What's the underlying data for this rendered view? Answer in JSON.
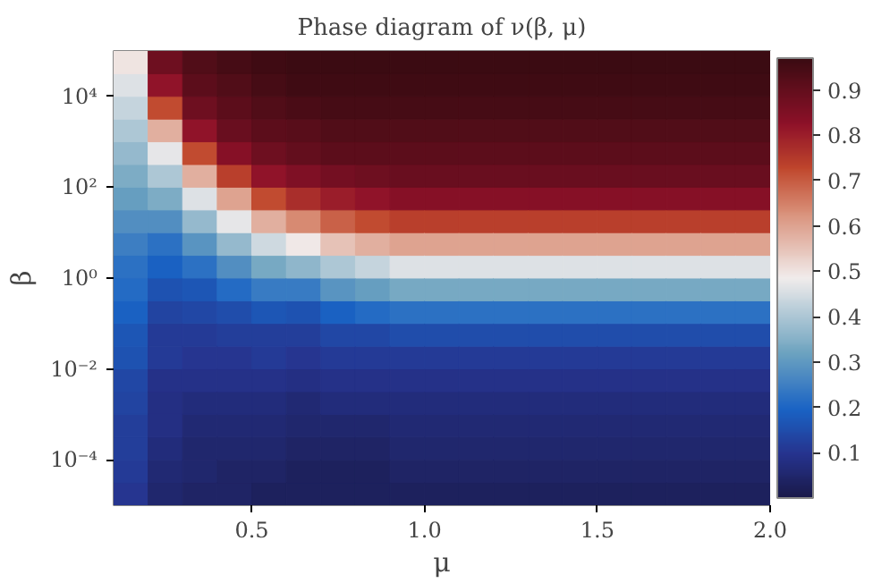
{
  "chart_data": {
    "type": "scatter",
    "title": "Phase diagram of ν(β, μ)",
    "xlabel": "μ",
    "ylabel": "β",
    "marker": "square",
    "log": "y",
    "xlim": [
      0.1,
      2.0
    ],
    "xticks": [
      0.5,
      {
        "value": 1.0,
        "label": "1.0"
      },
      1.5,
      {
        "value": 2.0,
        "label": "2.0"
      }
    ],
    "ylim": [
      1e-05,
      100000
    ],
    "yticks": [
      {
        "value": 0.0001,
        "label": "10⁻⁴"
      },
      {
        "value": 0.01,
        "label": "10⁻²"
      },
      {
        "value": 1,
        "label": "10⁰"
      },
      {
        "value": 100,
        "label": "10²"
      },
      {
        "value": 10000,
        "label": "10⁴"
      }
    ],
    "clim": [
      0.0,
      0.97
    ],
    "cticks": [
      0.1,
      0.2,
      0.3,
      0.4,
      0.5,
      0.6,
      0.7,
      0.8,
      0.9
    ],
    "x": [
      0.15,
      0.15,
      0.15,
      0.15,
      0.15,
      0.15,
      0.15,
      0.15,
      0.15,
      0.15,
      0.15,
      0.15,
      0.15,
      0.15,
      0.15,
      0.15,
      0.15,
      0.15,
      0.15,
      0.15,
      0.25,
      0.25,
      0.25,
      0.25,
      0.25,
      0.25,
      0.25,
      0.25,
      0.25,
      0.25,
      0.25,
      0.25,
      0.25,
      0.25,
      0.25,
      0.25,
      0.25,
      0.25,
      0.25,
      0.25,
      0.35,
      0.35,
      0.35,
      0.35,
      0.35,
      0.35,
      0.35,
      0.35,
      0.35,
      0.35,
      0.35,
      0.35,
      0.35,
      0.35,
      0.35,
      0.35,
      0.35,
      0.35,
      0.35,
      0.35,
      0.45,
      0.45,
      0.45,
      0.45,
      0.45,
      0.45,
      0.45,
      0.45,
      0.45,
      0.45,
      0.45,
      0.45,
      0.45,
      0.45,
      0.45,
      0.45,
      0.45,
      0.45,
      0.45,
      0.45,
      0.55,
      0.55,
      0.55,
      0.55,
      0.55,
      0.55,
      0.55,
      0.55,
      0.55,
      0.55,
      0.55,
      0.55,
      0.55,
      0.55,
      0.55,
      0.55,
      0.55,
      0.55,
      0.55,
      0.55,
      0.65,
      0.65,
      0.65,
      0.65,
      0.65,
      0.65,
      0.65,
      0.65,
      0.65,
      0.65,
      0.65,
      0.65,
      0.65,
      0.65,
      0.65,
      0.65,
      0.65,
      0.65,
      0.65,
      0.65,
      0.75,
      0.75,
      0.75,
      0.75,
      0.75,
      0.75,
      0.75,
      0.75,
      0.75,
      0.75,
      0.75,
      0.75,
      0.75,
      0.75,
      0.75,
      0.75,
      0.75,
      0.75,
      0.75,
      0.75,
      0.85,
      0.85,
      0.85,
      0.85,
      0.85,
      0.85,
      0.85,
      0.85,
      0.85,
      0.85,
      0.85,
      0.85,
      0.85,
      0.85,
      0.85,
      0.85,
      0.85,
      0.85,
      0.85,
      0.85,
      0.95,
      0.95,
      0.95,
      0.95,
      0.95,
      0.95,
      0.95,
      0.95,
      0.95,
      0.95,
      0.95,
      0.95,
      0.95,
      0.95,
      0.95,
      0.95,
      0.95,
      0.95,
      0.95,
      0.95,
      1.05,
      1.05,
      1.05,
      1.05,
      1.05,
      1.05,
      1.05,
      1.05,
      1.05,
      1.05,
      1.05,
      1.05,
      1.05,
      1.05,
      1.05,
      1.05,
      1.05,
      1.05,
      1.05,
      1.05,
      1.15,
      1.15,
      1.15,
      1.15,
      1.15,
      1.15,
      1.15,
      1.15,
      1.15,
      1.15,
      1.15,
      1.15,
      1.15,
      1.15,
      1.15,
      1.15,
      1.15,
      1.15,
      1.15,
      1.15,
      1.25,
      1.25,
      1.25,
      1.25,
      1.25,
      1.25,
      1.25,
      1.25,
      1.25,
      1.25,
      1.25,
      1.25,
      1.25,
      1.25,
      1.25,
      1.25,
      1.25,
      1.25,
      1.25,
      1.25,
      1.35,
      1.35,
      1.35,
      1.35,
      1.35,
      1.35,
      1.35,
      1.35,
      1.35,
      1.35,
      1.35,
      1.35,
      1.35,
      1.35,
      1.35,
      1.35,
      1.35,
      1.35,
      1.35,
      1.35,
      1.45,
      1.45,
      1.45,
      1.45,
      1.45,
      1.45,
      1.45,
      1.45,
      1.45,
      1.45,
      1.45,
      1.45,
      1.45,
      1.45,
      1.45,
      1.45,
      1.45,
      1.45,
      1.45,
      1.45,
      1.55,
      1.55,
      1.55,
      1.55,
      1.55,
      1.55,
      1.55,
      1.55,
      1.55,
      1.55,
      1.55,
      1.55,
      1.55,
      1.55,
      1.55,
      1.55,
      1.55,
      1.55,
      1.55,
      1.55,
      1.65,
      1.65,
      1.65,
      1.65,
      1.65,
      1.65,
      1.65,
      1.65,
      1.65,
      1.65,
      1.65,
      1.65,
      1.65,
      1.65,
      1.65,
      1.65,
      1.65,
      1.65,
      1.65,
      1.65,
      1.75,
      1.75,
      1.75,
      1.75,
      1.75,
      1.75,
      1.75,
      1.75,
      1.75,
      1.75,
      1.75,
      1.75,
      1.75,
      1.75,
      1.75,
      1.75,
      1.75,
      1.75,
      1.75,
      1.75,
      1.85,
      1.85,
      1.85,
      1.85,
      1.85,
      1.85,
      1.85,
      1.85,
      1.85,
      1.85,
      1.85,
      1.85,
      1.85,
      1.85,
      1.85,
      1.85,
      1.85,
      1.85,
      1.85,
      1.85,
      1.95,
      1.95,
      1.95,
      1.95,
      1.95,
      1.95,
      1.95,
      1.95,
      1.95,
      1.95,
      1.95,
      1.95,
      1.95,
      1.95,
      1.95,
      1.95,
      1.95,
      1.95,
      1.95,
      1.95
    ],
    "values": [
      1.78e-05,
      5.62e-05,
      0.000178,
      0.000562,
      0.00178,
      0.00562,
      0.0178,
      0.0562,
      0.178,
      0.562,
      1.78,
      5.62,
      17.8,
      56.2,
      178,
      562,
      1780,
      5620,
      17800,
      56200,
      1.78e-05,
      5.62e-05,
      0.000178,
      0.000562,
      0.00178,
      0.00562,
      0.0178,
      0.0562,
      0.178,
      0.562,
      1.78,
      5.62,
      17.8,
      56.2,
      178,
      562,
      1780,
      5620,
      17800,
      56200,
      1.78e-05,
      5.62e-05,
      0.000178,
      0.000562,
      0.00178,
      0.00562,
      0.0178,
      0.0562,
      0.178,
      0.562,
      1.78,
      5.62,
      17.8,
      56.2,
      178,
      562,
      1780,
      5620,
      17800,
      56200,
      1.78e-05,
      5.62e-05,
      0.000178,
      0.000562,
      0.00178,
      0.00562,
      0.0178,
      0.0562,
      0.178,
      0.562,
      1.78,
      5.62,
      17.8,
      56.2,
      178,
      562,
      1780,
      5620,
      17800,
      56200,
      1.78e-05,
      5.62e-05,
      0.000178,
      0.000562,
      0.00178,
      0.00562,
      0.0178,
      0.0562,
      0.178,
      0.562,
      1.78,
      5.62,
      17.8,
      56.2,
      178,
      562,
      1780,
      5620,
      17800,
      56200,
      1.78e-05,
      5.62e-05,
      0.000178,
      0.000562,
      0.00178,
      0.00562,
      0.0178,
      0.0562,
      0.178,
      0.562,
      1.78,
      5.62,
      17.8,
      56.2,
      178,
      562,
      1780,
      5620,
      17800,
      56200,
      1.78e-05,
      5.62e-05,
      0.000178,
      0.000562,
      0.00178,
      0.00562,
      0.0178,
      0.0562,
      0.178,
      0.562,
      1.78,
      5.62,
      17.8,
      56.2,
      178,
      562,
      1780,
      5620,
      17800,
      56200,
      1.78e-05,
      5.62e-05,
      0.000178,
      0.000562,
      0.00178,
      0.00562,
      0.0178,
      0.0562,
      0.178,
      0.562,
      1.78,
      5.62,
      17.8,
      56.2,
      178,
      562,
      1780,
      5620,
      17800,
      56200,
      1.78e-05,
      5.62e-05,
      0.000178,
      0.000562,
      0.00178,
      0.00562,
      0.0178,
      0.0562,
      0.178,
      0.562,
      1.78,
      5.62,
      17.8,
      56.2,
      178,
      562,
      1780,
      5620,
      17800,
      56200,
      1.78e-05,
      5.62e-05,
      0.000178,
      0.000562,
      0.00178,
      0.00562,
      0.0178,
      0.0562,
      0.178,
      0.562,
      1.78,
      5.62,
      17.8,
      56.2,
      178,
      562,
      1780,
      5620,
      17800,
      56200,
      1.78e-05,
      5.62e-05,
      0.000178,
      0.000562,
      0.00178,
      0.00562,
      0.0178,
      0.0562,
      0.178,
      0.562,
      1.78,
      5.62,
      17.8,
      56.2,
      178,
      562,
      1780,
      5620,
      17800,
      56200,
      1.78e-05,
      5.62e-05,
      0.000178,
      0.000562,
      0.00178,
      0.00562,
      0.0178,
      0.0562,
      0.178,
      0.562,
      1.78,
      5.62,
      17.8,
      56.2,
      178,
      562,
      1780,
      5620,
      17800,
      56200,
      1.78e-05,
      5.62e-05,
      0.000178,
      0.000562,
      0.00178,
      0.00562,
      0.0178,
      0.0562,
      0.178,
      0.562,
      1.78,
      5.62,
      17.8,
      56.2,
      178,
      562,
      1780,
      5620,
      17800,
      56200,
      1.78e-05,
      5.62e-05,
      0.000178,
      0.000562,
      0.00178,
      0.00562,
      0.0178,
      0.0562,
      0.178,
      0.562,
      1.78,
      5.62,
      17.8,
      56.2,
      178,
      562,
      1780,
      5620,
      17800,
      56200,
      1.78e-05,
      5.62e-05,
      0.000178,
      0.000562,
      0.00178,
      0.00562,
      0.0178,
      0.0562,
      0.178,
      0.562,
      1.78,
      5.62,
      17.8,
      56.2,
      178,
      562,
      1780,
      5620,
      17800,
      56200,
      1.78e-05,
      5.62e-05,
      0.000178,
      0.000562,
      0.00178,
      0.00562,
      0.0178,
      0.0562,
      0.178,
      0.562,
      1.78,
      5.62,
      17.8,
      56.2,
      178,
      562,
      1780,
      5620,
      17800,
      56200,
      1.78e-05,
      5.62e-05,
      0.000178,
      0.000562,
      0.00178,
      0.00562,
      0.0178,
      0.0562,
      0.178,
      0.562,
      1.78,
      5.62,
      17.8,
      56.2,
      178,
      562,
      1780,
      5620,
      17800,
      56200,
      1.78e-05,
      5.62e-05,
      0.000178,
      0.000562,
      0.00178,
      0.00562,
      0.0178,
      0.0562,
      0.178,
      0.562,
      1.78,
      5.62,
      17.8,
      56.2,
      178,
      562,
      1780,
      5620,
      17800,
      56200,
      1.78e-05,
      5.62e-05,
      0.000178,
      0.000562,
      0.00178,
      0.00562,
      0.0178,
      0.0562,
      0.178,
      0.562,
      1.78,
      5.62,
      17.8,
      56.2,
      178,
      562,
      1780,
      5620,
      17800,
      56200
    ],
    "cvalues": [
      0.1,
      0.11,
      0.12,
      0.12,
      0.13,
      0.14,
      0.16,
      0.17,
      0.19,
      0.21,
      0.22,
      0.25,
      0.28,
      0.31,
      0.34,
      0.37,
      0.4,
      0.43,
      0.46,
      0.5,
      0.05,
      0.06,
      0.07,
      0.08,
      0.08,
      0.09,
      0.11,
      0.11,
      0.13,
      0.16,
      0.19,
      0.22,
      0.28,
      0.34,
      0.4,
      0.47,
      0.58,
      0.72,
      0.82,
      0.88,
      0.04,
      0.05,
      0.05,
      0.06,
      0.07,
      0.09,
      0.1,
      0.11,
      0.14,
      0.17,
      0.22,
      0.29,
      0.37,
      0.46,
      0.58,
      0.72,
      0.82,
      0.88,
      0.91,
      0.93,
      0.04,
      0.04,
      0.05,
      0.06,
      0.07,
      0.09,
      0.1,
      0.12,
      0.15,
      0.21,
      0.28,
      0.37,
      0.47,
      0.6,
      0.74,
      0.84,
      0.89,
      0.91,
      0.93,
      0.95,
      0.03,
      0.04,
      0.05,
      0.06,
      0.07,
      0.09,
      0.11,
      0.12,
      0.17,
      0.24,
      0.33,
      0.44,
      0.58,
      0.72,
      0.82,
      0.88,
      0.91,
      0.93,
      0.95,
      0.96,
      0.03,
      0.03,
      0.04,
      0.05,
      0.06,
      0.08,
      0.1,
      0.12,
      0.16,
      0.24,
      0.36,
      0.49,
      0.64,
      0.77,
      0.85,
      0.9,
      0.92,
      0.94,
      0.96,
      0.97,
      0.03,
      0.03,
      0.04,
      0.05,
      0.07,
      0.09,
      0.11,
      0.14,
      0.19,
      0.29,
      0.4,
      0.55,
      0.69,
      0.8,
      0.87,
      0.91,
      0.93,
      0.95,
      0.96,
      0.97,
      0.03,
      0.03,
      0.04,
      0.05,
      0.07,
      0.09,
      0.11,
      0.14,
      0.21,
      0.31,
      0.43,
      0.58,
      0.72,
      0.82,
      0.88,
      0.91,
      0.93,
      0.95,
      0.96,
      0.97,
      0.03,
      0.04,
      0.05,
      0.06,
      0.07,
      0.09,
      0.11,
      0.15,
      0.22,
      0.33,
      0.46,
      0.6,
      0.74,
      0.84,
      0.89,
      0.91,
      0.93,
      0.95,
      0.96,
      0.97,
      0.03,
      0.04,
      0.05,
      0.06,
      0.07,
      0.09,
      0.11,
      0.15,
      0.22,
      0.33,
      0.46,
      0.6,
      0.74,
      0.84,
      0.89,
      0.91,
      0.93,
      0.95,
      0.96,
      0.97,
      0.03,
      0.04,
      0.05,
      0.06,
      0.07,
      0.09,
      0.11,
      0.15,
      0.22,
      0.33,
      0.46,
      0.6,
      0.74,
      0.84,
      0.89,
      0.91,
      0.93,
      0.95,
      0.96,
      0.97,
      0.03,
      0.04,
      0.05,
      0.06,
      0.07,
      0.09,
      0.11,
      0.15,
      0.22,
      0.33,
      0.46,
      0.6,
      0.74,
      0.84,
      0.89,
      0.91,
      0.93,
      0.95,
      0.96,
      0.97,
      0.03,
      0.04,
      0.05,
      0.06,
      0.07,
      0.09,
      0.11,
      0.15,
      0.22,
      0.33,
      0.46,
      0.6,
      0.74,
      0.84,
      0.89,
      0.91,
      0.93,
      0.95,
      0.96,
      0.97,
      0.03,
      0.04,
      0.05,
      0.06,
      0.07,
      0.09,
      0.11,
      0.15,
      0.22,
      0.33,
      0.46,
      0.6,
      0.74,
      0.84,
      0.89,
      0.91,
      0.93,
      0.95,
      0.96,
      0.97,
      0.03,
      0.04,
      0.05,
      0.06,
      0.07,
      0.09,
      0.11,
      0.15,
      0.22,
      0.33,
      0.46,
      0.6,
      0.74,
      0.84,
      0.89,
      0.91,
      0.93,
      0.95,
      0.96,
      0.97,
      0.03,
      0.04,
      0.05,
      0.06,
      0.07,
      0.09,
      0.11,
      0.15,
      0.22,
      0.33,
      0.46,
      0.6,
      0.74,
      0.84,
      0.89,
      0.91,
      0.93,
      0.95,
      0.96,
      0.97,
      0.03,
      0.04,
      0.05,
      0.06,
      0.07,
      0.09,
      0.11,
      0.15,
      0.22,
      0.33,
      0.46,
      0.6,
      0.74,
      0.84,
      0.89,
      0.91,
      0.93,
      0.95,
      0.96,
      0.97,
      0.03,
      0.04,
      0.05,
      0.06,
      0.07,
      0.09,
      0.11,
      0.15,
      0.22,
      0.33,
      0.46,
      0.6,
      0.74,
      0.84,
      0.89,
      0.91,
      0.93,
      0.95,
      0.96,
      0.97,
      0.03,
      0.04,
      0.05,
      0.06,
      0.07,
      0.09,
      0.11,
      0.15,
      0.22,
      0.33,
      0.46,
      0.6,
      0.74,
      0.84,
      0.89,
      0.91,
      0.93,
      0.95,
      0.96,
      0.97
    ]
  }
}
